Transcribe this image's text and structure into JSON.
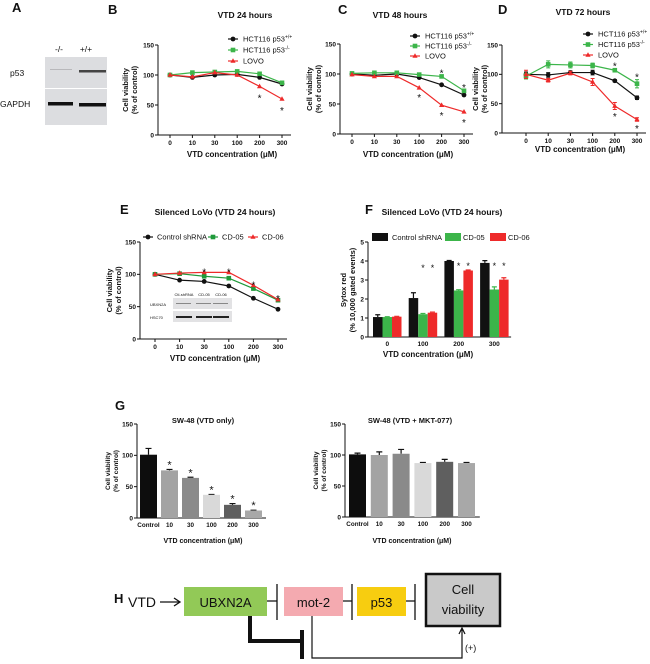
{
  "blot": {
    "panel": "A",
    "columns": [
      "-/-",
      "+/+"
    ],
    "rows": [
      "p53",
      "GAPDH"
    ]
  },
  "chart_data": [
    {
      "panel": "B",
      "type": "line",
      "title": "VTD 24 hours",
      "xlabel": "VTD concentration (μM)",
      "ylabel": [
        "Cell viability",
        "(% of control)"
      ],
      "categories": [
        "0",
        "10",
        "30",
        "100",
        "200",
        "300"
      ],
      "yticks": [
        "0",
        "50",
        "100",
        "150"
      ],
      "ylim": [
        0,
        150
      ],
      "significance_marker": "*",
      "series": [
        {
          "name_base": "HCT116 p53",
          "name_sup": "+/+",
          "color": "#111111",
          "marker": "circle",
          "values": [
            100,
            96,
            100,
            101,
            96,
            85
          ]
        },
        {
          "name_base": "HCT116 p53",
          "name_sup": "-/-",
          "color": "#3cb54a",
          "marker": "square",
          "values": [
            100,
            104,
            105,
            106,
            102,
            87
          ]
        },
        {
          "name_base": "LOVO",
          "name_sup": "",
          "color": "#ee2a2a",
          "marker": "triangle",
          "values": [
            100,
            97,
            104,
            100,
            81,
            60
          ]
        }
      ],
      "stars": [
        {
          "category": "200",
          "y": 64
        },
        {
          "category": "300",
          "y": 43
        }
      ]
    },
    {
      "panel": "C",
      "type": "line",
      "title": "VTD 48 hours",
      "xlabel": "VTD concentration (μM)",
      "ylabel": [
        "Cell viability",
        "(% of control)"
      ],
      "categories": [
        "0",
        "10",
        "30",
        "100",
        "200",
        "300"
      ],
      "yticks": [
        "0",
        "50",
        "100",
        "150"
      ],
      "ylim": [
        0,
        150
      ],
      "significance_marker": "*",
      "series": [
        {
          "name_base": "HCT116 p53",
          "name_sup": "+/+",
          "color": "#111111",
          "marker": "circle",
          "values": [
            100,
            98,
            100,
            94,
            82,
            65
          ]
        },
        {
          "name_base": "HCT116 p53",
          "name_sup": "-/-",
          "color": "#3cb54a",
          "marker": "square",
          "values": [
            101,
            102,
            102,
            99,
            96,
            72
          ]
        },
        {
          "name_base": "LOVO",
          "name_sup": "",
          "color": "#ee2a2a",
          "marker": "triangle",
          "values": [
            99,
            96,
            96,
            77,
            48,
            37
          ]
        }
      ],
      "stars": [
        {
          "category": "100",
          "y": 63
        },
        {
          "category": "200",
          "y": 104
        },
        {
          "category": "200",
          "y": 33
        },
        {
          "category": "300",
          "y": 80
        },
        {
          "category": "300",
          "y": 22
        }
      ]
    },
    {
      "panel": "D",
      "type": "line",
      "title": "VTD 72 hours",
      "xlabel": "VTD concentration (μM)",
      "ylabel": [
        "Cell viability",
        "(% of control)"
      ],
      "categories": [
        "0",
        "10",
        "30",
        "100",
        "200",
        "300"
      ],
      "yticks": [
        "0",
        "50",
        "100",
        "150"
      ],
      "ylim": [
        0,
        150
      ],
      "significance_marker": "*",
      "series": [
        {
          "name_base": "HCT116 p53",
          "name_sup": "+/+",
          "color": "#111111",
          "marker": "circle",
          "values": [
            100,
            99,
            103,
            103,
            89,
            60
          ],
          "errors": [
            4,
            4,
            3,
            4,
            2,
            3
          ]
        },
        {
          "name_base": "HCT116 p53",
          "name_sup": "-/-",
          "color": "#3cb54a",
          "marker": "square",
          "values": [
            97,
            117,
            116,
            115,
            107,
            84
          ],
          "errors": [
            5,
            6,
            5,
            4,
            3,
            7
          ]
        },
        {
          "name_base": "LOVO",
          "name_sup": "",
          "color": "#ee2a2a",
          "marker": "triangle",
          "values": [
            100,
            90,
            102,
            87,
            46,
            23
          ],
          "errors": [
            7,
            3,
            3,
            6,
            6,
            3
          ]
        }
      ],
      "stars": [
        {
          "category": "200",
          "y": 117
        },
        {
          "category": "200",
          "y": 31
        },
        {
          "category": "300",
          "y": 98
        },
        {
          "category": "300",
          "y": 10
        }
      ]
    },
    {
      "panel": "E",
      "type": "line",
      "title": "Silenced LoVo (VTD 24 hours)",
      "xlabel": "VTD concentration (μM)",
      "ylabel": [
        "Cell viability",
        "(% of control)"
      ],
      "categories": [
        "0",
        "10",
        "30",
        "100",
        "200",
        "300"
      ],
      "yticks": [
        "0",
        "50",
        "100",
        "150"
      ],
      "ylim": [
        0,
        150
      ],
      "significance_marker": "*",
      "series": [
        {
          "name_base": "Control shRNA",
          "name_sup": "",
          "color": "#111111",
          "marker": "circle",
          "values": [
            100,
            91,
            89,
            82,
            63,
            46
          ]
        },
        {
          "name_base": "CD-05",
          "name_sup": "",
          "color": "#1f9a3a",
          "marker": "square",
          "values": [
            100,
            101,
            97,
            94,
            78,
            60
          ]
        },
        {
          "name_base": "CD-06",
          "name_sup": "",
          "color": "#ee2a2a",
          "marker": "triangle",
          "values": [
            100,
            102,
            103,
            103,
            83,
            61
          ]
        }
      ],
      "stars": [
        {
          "category": "30",
          "y": 106
        },
        {
          "category": "100",
          "y": 106
        },
        {
          "category": "200",
          "y": 86
        },
        {
          "category": "300",
          "y": 65
        }
      ],
      "inset_blot": {
        "columns": [
          "Ctl-shRNA",
          "CD-05",
          "CD-06"
        ],
        "rows": [
          "UBXN2A",
          "HSC70"
        ]
      }
    },
    {
      "panel": "F",
      "type": "bar",
      "title": "Silenced LoVo (VTD 24 hours)",
      "xlabel": "VTD concentration (μM)",
      "ylabel": [
        "Sytox red",
        "(% 10,000 gated events)"
      ],
      "categories": [
        "0",
        "100",
        "200",
        "300"
      ],
      "yticks": [
        "0",
        "1",
        "2",
        "3",
        "4",
        "5"
      ],
      "ylim": [
        0,
        5
      ],
      "significance_marker": "*",
      "series": [
        {
          "name": "Control shRNA",
          "color": "#111111",
          "values": [
            1.05,
            2.05,
            4.0,
            3.9
          ],
          "errors": [
            0.12,
            0.28,
            0.03,
            0.12
          ]
        },
        {
          "name": "CD-05",
          "color": "#3cb54a",
          "values": [
            1.05,
            1.2,
            2.45,
            2.5
          ],
          "errors": [
            0.02,
            0.04,
            0.04,
            0.14
          ]
        },
        {
          "name": "CD-06",
          "color": "#ee2a2a",
          "values": [
            1.07,
            1.28,
            3.5,
            3.02
          ],
          "errors": [
            0.02,
            0.03,
            0.03,
            0.1
          ]
        }
      ],
      "stars": [
        {
          "category": "100",
          "series": "CD-05",
          "y": 3.75
        },
        {
          "category": "100",
          "series": "CD-06",
          "y": 3.75
        },
        {
          "category": "200",
          "series": "CD-05",
          "y": 3.85
        },
        {
          "category": "200",
          "series": "CD-06",
          "y": 3.85
        },
        {
          "category": "300",
          "series": "CD-05",
          "y": 3.85
        },
        {
          "category": "300",
          "series": "CD-06",
          "y": 3.85
        }
      ]
    },
    {
      "panel": "G",
      "type": "bar",
      "title": "SW-48 (VTD only)",
      "xlabel": "VTD concentration (μM)",
      "ylabel": [
        "Cell viability",
        "(% of control)"
      ],
      "categories": [
        "Control",
        "10",
        "30",
        "100",
        "200",
        "300"
      ],
      "yticks": [
        "0",
        "50",
        "100",
        "150"
      ],
      "ylim": [
        0,
        150
      ],
      "significance_marker": "*",
      "values": [
        101,
        76,
        64,
        37,
        21,
        12
      ],
      "errors": [
        10,
        1.5,
        1,
        0.5,
        2,
        0.5
      ],
      "colors": [
        "#0d0d0d",
        "#a3a3a3",
        "#8a8a8a",
        "#d9d9d9",
        "#5f5f5f",
        "#a8a8a8"
      ],
      "stars": [
        "10",
        "30",
        "100",
        "200",
        "300"
      ]
    },
    {
      "panel": "",
      "type": "bar",
      "title": "SW-48 (VTD + MKT-077)",
      "xlabel": "VTD concentration (μM)",
      "ylabel": [
        "Cell viability",
        "(% of control)"
      ],
      "categories": [
        "Control",
        "10",
        "30",
        "100",
        "200",
        "300"
      ],
      "yticks": [
        "0",
        "50",
        "100",
        "150"
      ],
      "ylim": [
        0,
        150
      ],
      "values": [
        101,
        100,
        102,
        87,
        89,
        87
      ],
      "errors": [
        2,
        5,
        7,
        1,
        4,
        1
      ],
      "colors": [
        "#0d0d0d",
        "#a3a3a3",
        "#8a8a8a",
        "#d9d9d9",
        "#5f5f5f",
        "#a8a8a8"
      ],
      "stars": []
    }
  ],
  "diagram": {
    "panel": "H",
    "input": "VTD",
    "nodes": [
      {
        "label": "UBXN2A",
        "color": "#92c957"
      },
      {
        "label": "mot-2",
        "color": "#f4aab0"
      },
      {
        "label": "p53",
        "color": "#f7cd10"
      }
    ],
    "output": [
      "Cell",
      "viability"
    ],
    "output_color": "#c9c9c9",
    "effect": "(+)"
  }
}
